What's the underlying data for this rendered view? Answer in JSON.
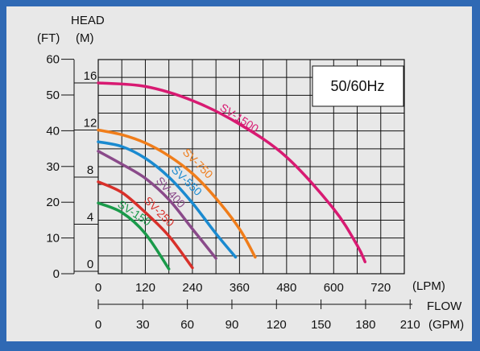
{
  "chart_data": {
    "type": "line",
    "axis_titles": {
      "head": "HEAD",
      "ft": "(FT)",
      "m": "(M)",
      "flow": "FLOW",
      "lpm": "(LPM)",
      "gpm": "(GPM)"
    },
    "legend_box": "50/60Hz",
    "y_ft_ticks": [
      {
        "v": 0,
        "t": "0"
      },
      {
        "v": 10,
        "t": "10"
      },
      {
        "v": 20,
        "t": "20"
      },
      {
        "v": 30,
        "t": "30"
      },
      {
        "v": 40,
        "t": "40"
      },
      {
        "v": 50,
        "t": "50"
      },
      {
        "v": 60,
        "t": "60"
      }
    ],
    "y_m_ticks": [
      {
        "v": 0,
        "t": "0"
      },
      {
        "v": 4,
        "t": "4"
      },
      {
        "v": 8,
        "t": "8"
      },
      {
        "v": 12,
        "t": "12"
      },
      {
        "v": 16,
        "t": "16"
      }
    ],
    "x_lpm_ticks": [
      {
        "v": 0,
        "t": "0"
      },
      {
        "v": 120,
        "t": "120"
      },
      {
        "v": 240,
        "t": "240"
      },
      {
        "v": 360,
        "t": "360"
      },
      {
        "v": 480,
        "t": "480"
      },
      {
        "v": 600,
        "t": "600"
      },
      {
        "v": 720,
        "t": "720"
      }
    ],
    "x_gpm_ticks": [
      {
        "v": 0,
        "t": "0"
      },
      {
        "v": 30,
        "t": "30"
      },
      {
        "v": 60,
        "t": "60"
      },
      {
        "v": 90,
        "t": "90"
      },
      {
        "v": 120,
        "t": "120"
      },
      {
        "v": 150,
        "t": "150"
      },
      {
        "v": 180,
        "t": "180"
      },
      {
        "v": 210,
        "t": "210"
      }
    ],
    "x_range_lpm": [
      0,
      780
    ],
    "y_range_m": [
      0,
      18
    ],
    "grid": true,
    "series": [
      {
        "name": "SV-150",
        "color": "#1a9a4a",
        "x_lpm": [
          0,
          60,
          120,
          180
        ],
        "y_m": [
          5.8,
          5.0,
          3.2,
          0.2
        ]
      },
      {
        "name": "SV-250",
        "color": "#d8302a",
        "x_lpm": [
          0,
          60,
          120,
          180,
          240
        ],
        "y_m": [
          7.6,
          6.7,
          5.0,
          3.0,
          0.3
        ]
      },
      {
        "name": "SV-400",
        "color": "#8a4a8a",
        "x_lpm": [
          0,
          60,
          120,
          180,
          240,
          300
        ],
        "y_m": [
          10.2,
          9.1,
          7.9,
          6.1,
          3.6,
          1.1
        ]
      },
      {
        "name": "SV-550",
        "color": "#1a8ad0",
        "x_lpm": [
          0,
          60,
          120,
          180,
          240,
          300,
          350
        ],
        "y_m": [
          11.0,
          10.6,
          9.6,
          8.0,
          5.8,
          3.2,
          1.2
        ]
      },
      {
        "name": "SV-750",
        "color": "#f07d1a",
        "x_lpm": [
          0,
          60,
          120,
          180,
          240,
          300,
          360,
          400
        ],
        "y_m": [
          12.0,
          11.6,
          10.9,
          9.8,
          8.3,
          6.2,
          3.6,
          1.2
        ]
      },
      {
        "name": "SV-1500",
        "color": "#d81a72",
        "x_lpm": [
          0,
          120,
          240,
          360,
          480,
          600,
          660,
          680
        ],
        "y_m": [
          16.0,
          15.7,
          14.5,
          12.5,
          9.7,
          5.3,
          2.2,
          0.8
        ]
      }
    ]
  }
}
